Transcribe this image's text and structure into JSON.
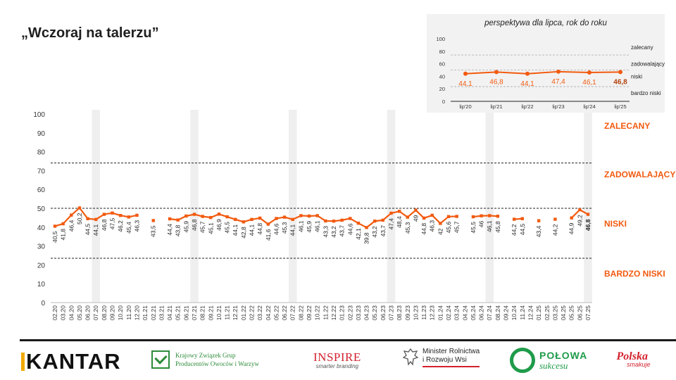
{
  "title": "„Wczoraj na talerzu”",
  "colors": {
    "series": "#f25a0f",
    "category": "#f25a0f",
    "band": "#efefef"
  },
  "categories_right": {
    "recommended": "ZALECANY",
    "satisfactory": "ZADOWALAJĄCY",
    "low": "NISKI",
    "very_low": "BARDZO NISKI"
  },
  "chart_data": [
    {
      "type": "line",
      "y_ticks": [
        "100",
        "90",
        "80",
        "70",
        "60",
        "50",
        "40",
        "30",
        "20",
        "10",
        "0"
      ],
      "ylim": [
        0,
        100
      ],
      "thresholds": [
        74,
        50,
        23.5
      ],
      "highlight_months": [
        "07.20",
        "07.21",
        "07.22",
        "07.23",
        "07.24",
        "07.25"
      ],
      "x": [
        "02.20",
        "03.20",
        "04.20",
        "05.20",
        "06.20",
        "07.20",
        "08.20",
        "09.20",
        "10.20",
        "11.20",
        "12.20",
        "01.21",
        "02.21",
        "03.21",
        "04.21",
        "05.21",
        "06.21",
        "07.21",
        "08.21",
        "09.21",
        "10.21",
        "11.21",
        "12.21",
        "01.22",
        "02.22",
        "03.22",
        "04.22",
        "05.22",
        "06.22",
        "07.22",
        "08.22",
        "09.22",
        "10.22",
        "11.22",
        "12.22",
        "01.23",
        "02.23",
        "03.23",
        "04.23",
        "05.23",
        "06.23",
        "07.23",
        "08.23",
        "09.23",
        "10.23",
        "11.23",
        "12.23",
        "01.24",
        "02.24",
        "03.24",
        "04.24",
        "05.24",
        "06.24",
        "07.24",
        "08.24",
        "09.24",
        "10.24",
        "11.24",
        "12.24",
        "01.25",
        "02.25",
        "03.25",
        "04.25",
        "05.25",
        "06.25",
        "07.25"
      ],
      "values": [
        40.5,
        41.8,
        46.4,
        50.2,
        44.5,
        44.1,
        46.8,
        47.5,
        46.2,
        45.4,
        46.3,
        null,
        43.5,
        null,
        44.4,
        43.8,
        45.9,
        46.8,
        45.7,
        45.1,
        46.9,
        45.5,
        44.1,
        42.8,
        44.1,
        44.8,
        41.6,
        44.6,
        45.3,
        44.1,
        46.1,
        45.9,
        46.1,
        43.3,
        43.2,
        43.7,
        44.6,
        42.1,
        39.8,
        43.2,
        43.7,
        47.4,
        48.4,
        45.3,
        49,
        44.8,
        46.3,
        42,
        45.6,
        45.7,
        null,
        45.5,
        46,
        46.1,
        45.8,
        null,
        44.2,
        44.5,
        null,
        43.4,
        null,
        44.2,
        null,
        44.9,
        49.2,
        46.8
      ],
      "labels": [
        "40,5",
        "41,8",
        "46,4",
        "50,2",
        "44,5",
        "44,1",
        "46,8",
        "47,5",
        "46,2",
        "45,4",
        "46,3",
        "",
        "43,5",
        "",
        "44,4",
        "43,8",
        "45,9",
        "46,8",
        "45,7",
        "45,1",
        "46,9",
        "45,5",
        "44,1",
        "42,8",
        "44,1",
        "44,8",
        "41,6",
        "44,6",
        "45,3",
        "44,1",
        "46,1",
        "45,9",
        "46,1",
        "43,3",
        "43,2",
        "43,7",
        "44,6",
        "42,1",
        "39,8",
        "43,2",
        "43,7",
        "47,4",
        "48,4",
        "45,3",
        "49",
        "44,8",
        "46,3",
        "42",
        "45,6",
        "45,7",
        "",
        "45,5",
        "46",
        "46,1",
        "45,8",
        "",
        "44,2",
        "44,5",
        "",
        "43,4",
        "",
        "44,2",
        "",
        "44,9",
        "49,2",
        "46,8"
      ]
    },
    {
      "type": "line",
      "title": "perspektywa dla lipca, rok do roku",
      "y_ticks": [
        "100",
        "80",
        "60",
        "40",
        "20",
        "0"
      ],
      "ylim": [
        0,
        100
      ],
      "thresholds": [
        74,
        50,
        23.5
      ],
      "threshold_labels": [
        "zalecany",
        "zadowalający",
        "niski",
        "bardzo niski"
      ],
      "x": [
        "lip'20",
        "lip'21",
        "lip'22",
        "lip'23",
        "lip'24",
        "lip'25"
      ],
      "values": [
        44.1,
        46.8,
        44.1,
        47.4,
        46.1,
        46.8
      ],
      "labels": [
        "44,1",
        "46,8",
        "44,1",
        "47,4",
        "46,1",
        "46,8"
      ]
    }
  ],
  "logos": {
    "kantar": "KANTAR",
    "kzg_line1": "Krajowy Związek Grup",
    "kzg_line2": "Producentów Owoców i Warzyw",
    "inspire": "INSPIRE",
    "inspire_sub": "smarter branding",
    "minister_line1": "Minister Rolnictwa",
    "minister_line2": "i Rozwoju Wsi",
    "polowa_line1": "POŁOWA",
    "polowa_line2": "sukcesu",
    "polska_line1": "Polska",
    "polska_line2": "smakuje"
  }
}
